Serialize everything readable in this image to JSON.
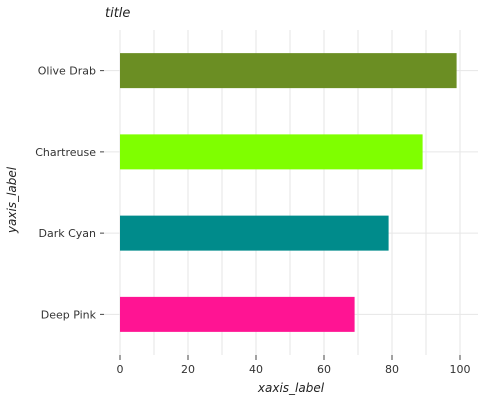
{
  "chart_data": {
    "type": "bar",
    "orientation": "horizontal",
    "title": "title",
    "xlabel": "xaxis_label",
    "ylabel": "yaxis_label",
    "categories": [
      "Olive Drab",
      "Chartreuse",
      "Dark Cyan",
      "Deep Pink"
    ],
    "values": [
      99,
      89,
      79,
      69
    ],
    "colors": [
      "#6b8e23",
      "#7fff00",
      "#008b8b",
      "#ff1493"
    ],
    "xlim": [
      0,
      100
    ],
    "xticks": [
      0,
      20,
      40,
      60,
      80,
      100
    ],
    "grid": true
  }
}
